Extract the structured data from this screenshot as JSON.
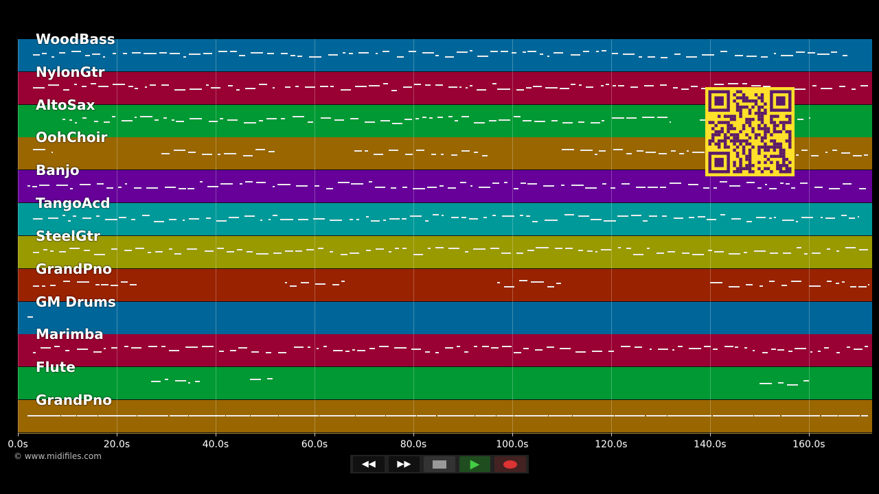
{
  "tracks": [
    {
      "name": "WoodBass",
      "color": "#006699",
      "segments": [
        [
          3,
          168
        ]
      ]
    },
    {
      "name": "NylonGtr",
      "color": "#990033",
      "segments": [
        [
          3,
          52
        ],
        [
          54,
          97
        ],
        [
          97,
          172
        ]
      ]
    },
    {
      "name": "AltoSax",
      "color": "#009933",
      "segments": [
        [
          9,
          132
        ],
        [
          138,
          160
        ]
      ]
    },
    {
      "name": "OohChoir",
      "color": "#996600",
      "segments": [
        [
          3,
          7
        ],
        [
          29,
          52
        ],
        [
          68,
          95
        ],
        [
          110,
          172
        ]
      ]
    },
    {
      "name": "Banjo",
      "color": "#660099",
      "segments": [
        [
          2,
          172
        ]
      ]
    },
    {
      "name": "TangoAcd",
      "color": "#009999",
      "segments": [
        [
          3,
          170
        ]
      ]
    },
    {
      "name": "SteelGtr",
      "color": "#999900",
      "segments": [
        [
          3,
          172
        ]
      ]
    },
    {
      "name": "GrandPno",
      "color": "#992200",
      "segments": [
        [
          3,
          24
        ],
        [
          54,
          67
        ],
        [
          97,
          110
        ],
        [
          140,
          172
        ]
      ]
    },
    {
      "name": "GM Drums",
      "color": "#006699",
      "segments": [
        [
          2,
          3
        ]
      ]
    },
    {
      "name": "Marimba",
      "color": "#990033",
      "segments": [
        [
          3,
          172
        ]
      ]
    },
    {
      "name": "Flute",
      "color": "#009933",
      "segments": [
        [
          27,
          37
        ],
        [
          47,
          52
        ],
        [
          150,
          160
        ]
      ]
    },
    {
      "name": "GrandPno",
      "color": "#996600",
      "segments": [
        [
          2,
          172
        ]
      ]
    }
  ],
  "axis": {
    "ticks": [
      "0.0s",
      "20.0s",
      "40.0s",
      "60.0s",
      "80.0s",
      "100.0s",
      "120.0s",
      "140.0s",
      "160.0s"
    ],
    "step_seconds": 20,
    "duration_seconds": 172.8
  },
  "footer": {
    "copyright": "© www.midifiles.com"
  },
  "controls": {
    "rewind": "rewind-icon",
    "fast_forward": "fast-forward-icon",
    "stop": "stop-icon",
    "play": "play-icon",
    "record": "record-icon"
  }
}
